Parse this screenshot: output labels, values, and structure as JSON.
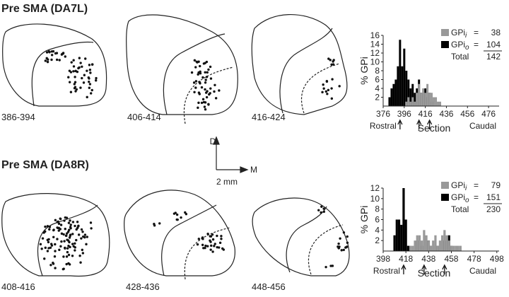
{
  "panels": [
    {
      "title": "Pre SMA (DA7L)",
      "sections": [
        "386-394",
        "406-414",
        "416-424"
      ]
    },
    {
      "title": "Pre SMA (DA8R)",
      "sections": [
        "408-416",
        "428-436",
        "448-456"
      ]
    }
  ],
  "scale": {
    "dorsal": "D",
    "medial": "M",
    "bar": "2 mm"
  },
  "chart_data": [
    {
      "type": "bar",
      "y_label": "% GPi",
      "x_label": "Section",
      "rostral": "Rostral",
      "caudal": "Caudal",
      "xlim": [
        376,
        486
      ],
      "xticks": [
        376,
        396,
        416,
        436,
        456,
        476
      ],
      "ylim": [
        0,
        16
      ],
      "yticks": [
        2,
        4,
        6,
        8,
        10,
        12,
        14,
        16
      ],
      "arrows": [
        392,
        410,
        420
      ],
      "bin_width": 2,
      "x": [
        382,
        384,
        386,
        388,
        390,
        392,
        394,
        396,
        398,
        400,
        402,
        404,
        406,
        408,
        410,
        412,
        414,
        416,
        418,
        420,
        422,
        424,
        426,
        428,
        430
      ],
      "series": [
        {
          "name": "GPi",
          "subscript": "i",
          "color": "#999999",
          "count": 38,
          "values": [
            0,
            0,
            0,
            0,
            0,
            0,
            0,
            0,
            1,
            2,
            1,
            2,
            1,
            3,
            5,
            3,
            4,
            3,
            5,
            3,
            3,
            2,
            2,
            1,
            1
          ]
        },
        {
          "name": "GPi",
          "subscript": "o",
          "color": "#000000",
          "count": 104,
          "values": [
            2,
            4,
            5,
            6,
            9,
            15,
            9,
            13,
            8,
            6,
            4,
            5,
            3,
            4,
            6,
            3,
            3,
            4,
            2,
            3,
            1,
            1,
            0,
            0,
            0
          ]
        }
      ],
      "equals": "=",
      "total_label": "Total",
      "total": 142
    },
    {
      "type": "bar",
      "y_label": "% GPi",
      "x_label": "Section",
      "rostral": "Rostral",
      "caudal": "Caudal",
      "xlim": [
        398,
        500
      ],
      "xticks": [
        398,
        418,
        438,
        458,
        478,
        498
      ],
      "ylim": [
        0,
        12
      ],
      "yticks": [
        2,
        4,
        6,
        8,
        10,
        12
      ],
      "arrows": [
        416,
        434,
        452
      ],
      "bin_width": 2,
      "x": [
        408,
        410,
        412,
        414,
        416,
        418,
        420,
        422,
        424,
        426,
        428,
        430,
        432,
        434,
        436,
        438,
        440,
        442,
        444,
        446,
        448,
        450,
        452,
        454,
        456,
        458,
        460,
        462,
        464,
        466
      ],
      "series": [
        {
          "name": "GPi",
          "subscript": "i",
          "color": "#999999",
          "count": 79,
          "values": [
            0,
            0,
            0,
            0,
            0,
            0,
            0,
            1,
            1,
            2,
            3,
            3,
            2,
            4,
            3,
            2,
            1,
            2,
            3,
            1,
            2,
            3,
            4,
            3,
            2,
            1,
            1,
            1,
            1,
            1
          ]
        },
        {
          "name": "GPi",
          "subscript": "o",
          "color": "#000000",
          "count": 151,
          "values": [
            3,
            6,
            6,
            5,
            12,
            6,
            1,
            0,
            0,
            0,
            2,
            2,
            1,
            0,
            2,
            2,
            1,
            0,
            1,
            1,
            0,
            2,
            2,
            2,
            3,
            1,
            0,
            0,
            0,
            0
          ]
        }
      ],
      "equals": "=",
      "total_label": "Total",
      "total": 230
    }
  ]
}
